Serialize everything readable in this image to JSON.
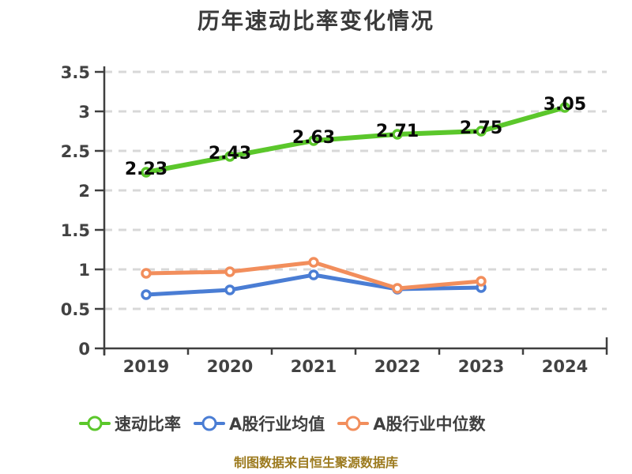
{
  "chart": {
    "title": "历年速动比率变化情况"
  },
  "footer": {
    "source_note": "制图数据来自恒生聚源数据库"
  },
  "chart_data": {
    "type": "line",
    "title": "历年速动比率变化情况",
    "categories": [
      "2019",
      "2020",
      "2021",
      "2022",
      "2023",
      "2024"
    ],
    "series": [
      {
        "name": "速动比率",
        "color": "#5BC72B",
        "values": [
          2.23,
          2.43,
          2.63,
          2.71,
          2.75,
          3.05
        ],
        "show_labels": true,
        "marker": "hollow-circle"
      },
      {
        "name": "A股行业均值",
        "color": "#4A7DD4",
        "values": [
          0.68,
          0.74,
          0.93,
          0.75,
          0.77,
          null
        ],
        "show_labels": false,
        "marker": "hollow-circle"
      },
      {
        "name": "A股行业中位数",
        "color": "#F28E5C",
        "values": [
          0.95,
          0.97,
          1.09,
          0.76,
          0.85,
          null
        ],
        "show_labels": false,
        "marker": "hollow-circle"
      }
    ],
    "xlabel": "",
    "ylabel": "",
    "ylim": [
      0,
      3.5
    ],
    "ytick_step": 0.5,
    "yticks": [
      "0",
      "0.5",
      "1",
      "1.5",
      "2",
      "2.5",
      "3",
      "3.5"
    ],
    "grid": "dashed-horizontal",
    "legend_position": "bottom",
    "style": {
      "grid_color": "#D8D8D8",
      "axis_color": "#3F3F3F",
      "title_color": "#3A3A3A",
      "data_label_color": "#0A0A0A",
      "source_note_color": "#9C7A1E",
      "background": "#FFFFFF"
    }
  }
}
